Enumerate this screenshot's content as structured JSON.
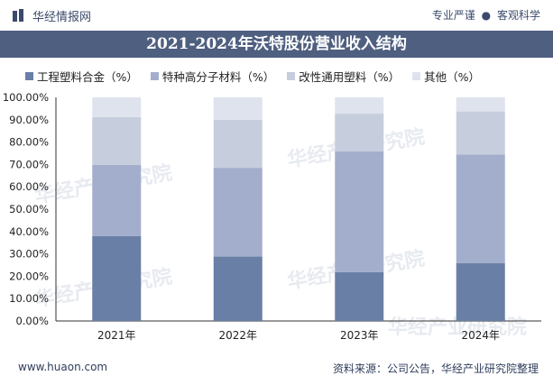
{
  "header": {
    "brand": "华经情报网",
    "tagline_left": "专业严谨",
    "tagline_dot": "●",
    "tagline_right": "客观科学"
  },
  "title": "2021-2024年沃特股份营业收入结构",
  "colors": [
    "#6a7fa5",
    "#a2aecb",
    "#c6cddd",
    "#dfe3ed"
  ],
  "chart_data": {
    "type": "bar",
    "stacked": true,
    "title": "2021-2024年沃特股份营业收入结构",
    "categories": [
      "2021年",
      "2022年",
      "2023年",
      "2024年"
    ],
    "series": [
      {
        "name": "工程塑料合金（%）",
        "values": [
          38.0,
          28.8,
          21.8,
          25.8
        ]
      },
      {
        "name": "特种高分子材料（%）",
        "values": [
          31.8,
          39.7,
          54.0,
          48.7
        ]
      },
      {
        "name": "改性通用塑料（%）",
        "values": [
          21.4,
          21.4,
          16.9,
          19.2
        ]
      },
      {
        "name": "其他（%）",
        "values": [
          8.8,
          10.1,
          7.3,
          6.3
        ]
      }
    ],
    "yticks": [
      "0.00%",
      "10.00%",
      "20.00%",
      "30.00%",
      "40.00%",
      "50.00%",
      "60.00%",
      "70.00%",
      "80.00%",
      "90.00%",
      "100.00%"
    ],
    "ylim": [
      0,
      100
    ],
    "xlabel": "",
    "ylabel": "",
    "legend": "top"
  },
  "footer": {
    "website": "www.huaon.com",
    "source": "资料来源：公司公告，华经产业研究院整理"
  },
  "watermark": {
    "cn": "华经产业研究院",
    "url": "www.huaon.com"
  }
}
